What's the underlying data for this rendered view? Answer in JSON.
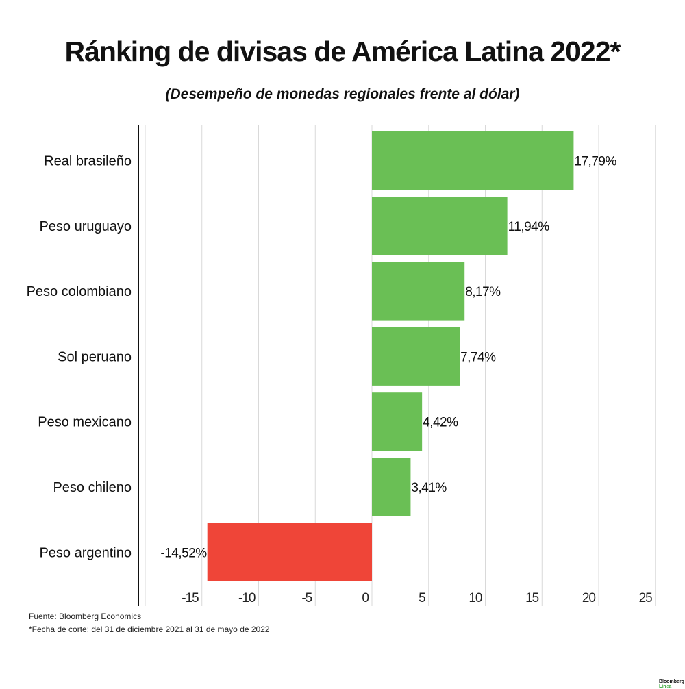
{
  "chart_data": {
    "type": "bar",
    "orientation": "horizontal",
    "title": "Ránking de divisas de América Latina 2022*",
    "subtitle": "(Desempeño de monedas regionales frente al dólar)",
    "categories": [
      "Real brasileño",
      "Peso uruguayo",
      "Peso colombiano",
      "Sol peruano",
      "Peso mexicano",
      "Peso chileno",
      "Peso argentino"
    ],
    "values": [
      17.79,
      11.94,
      8.17,
      7.74,
      4.42,
      3.41,
      -14.52
    ],
    "data_labels": [
      "17,79%",
      "11,94%",
      "8,17%",
      "7,74%",
      "4,42%",
      "3,41%",
      "-14,52%"
    ],
    "xlim": [
      -20,
      25
    ],
    "x_ticks": [
      -15,
      -10,
      -5,
      0,
      5,
      10,
      15,
      20,
      25
    ],
    "grid": true,
    "colors": {
      "positive": "#6abf55",
      "negative": "#ef4538"
    }
  },
  "footer": {
    "source": "Fuente: Bloomberg Economics",
    "note": "*Fecha de corte: del 31 de diciembre 2021 al 31 de mayo de 2022"
  },
  "logo": {
    "line1": "Bloomberg",
    "line2": "Línea"
  }
}
